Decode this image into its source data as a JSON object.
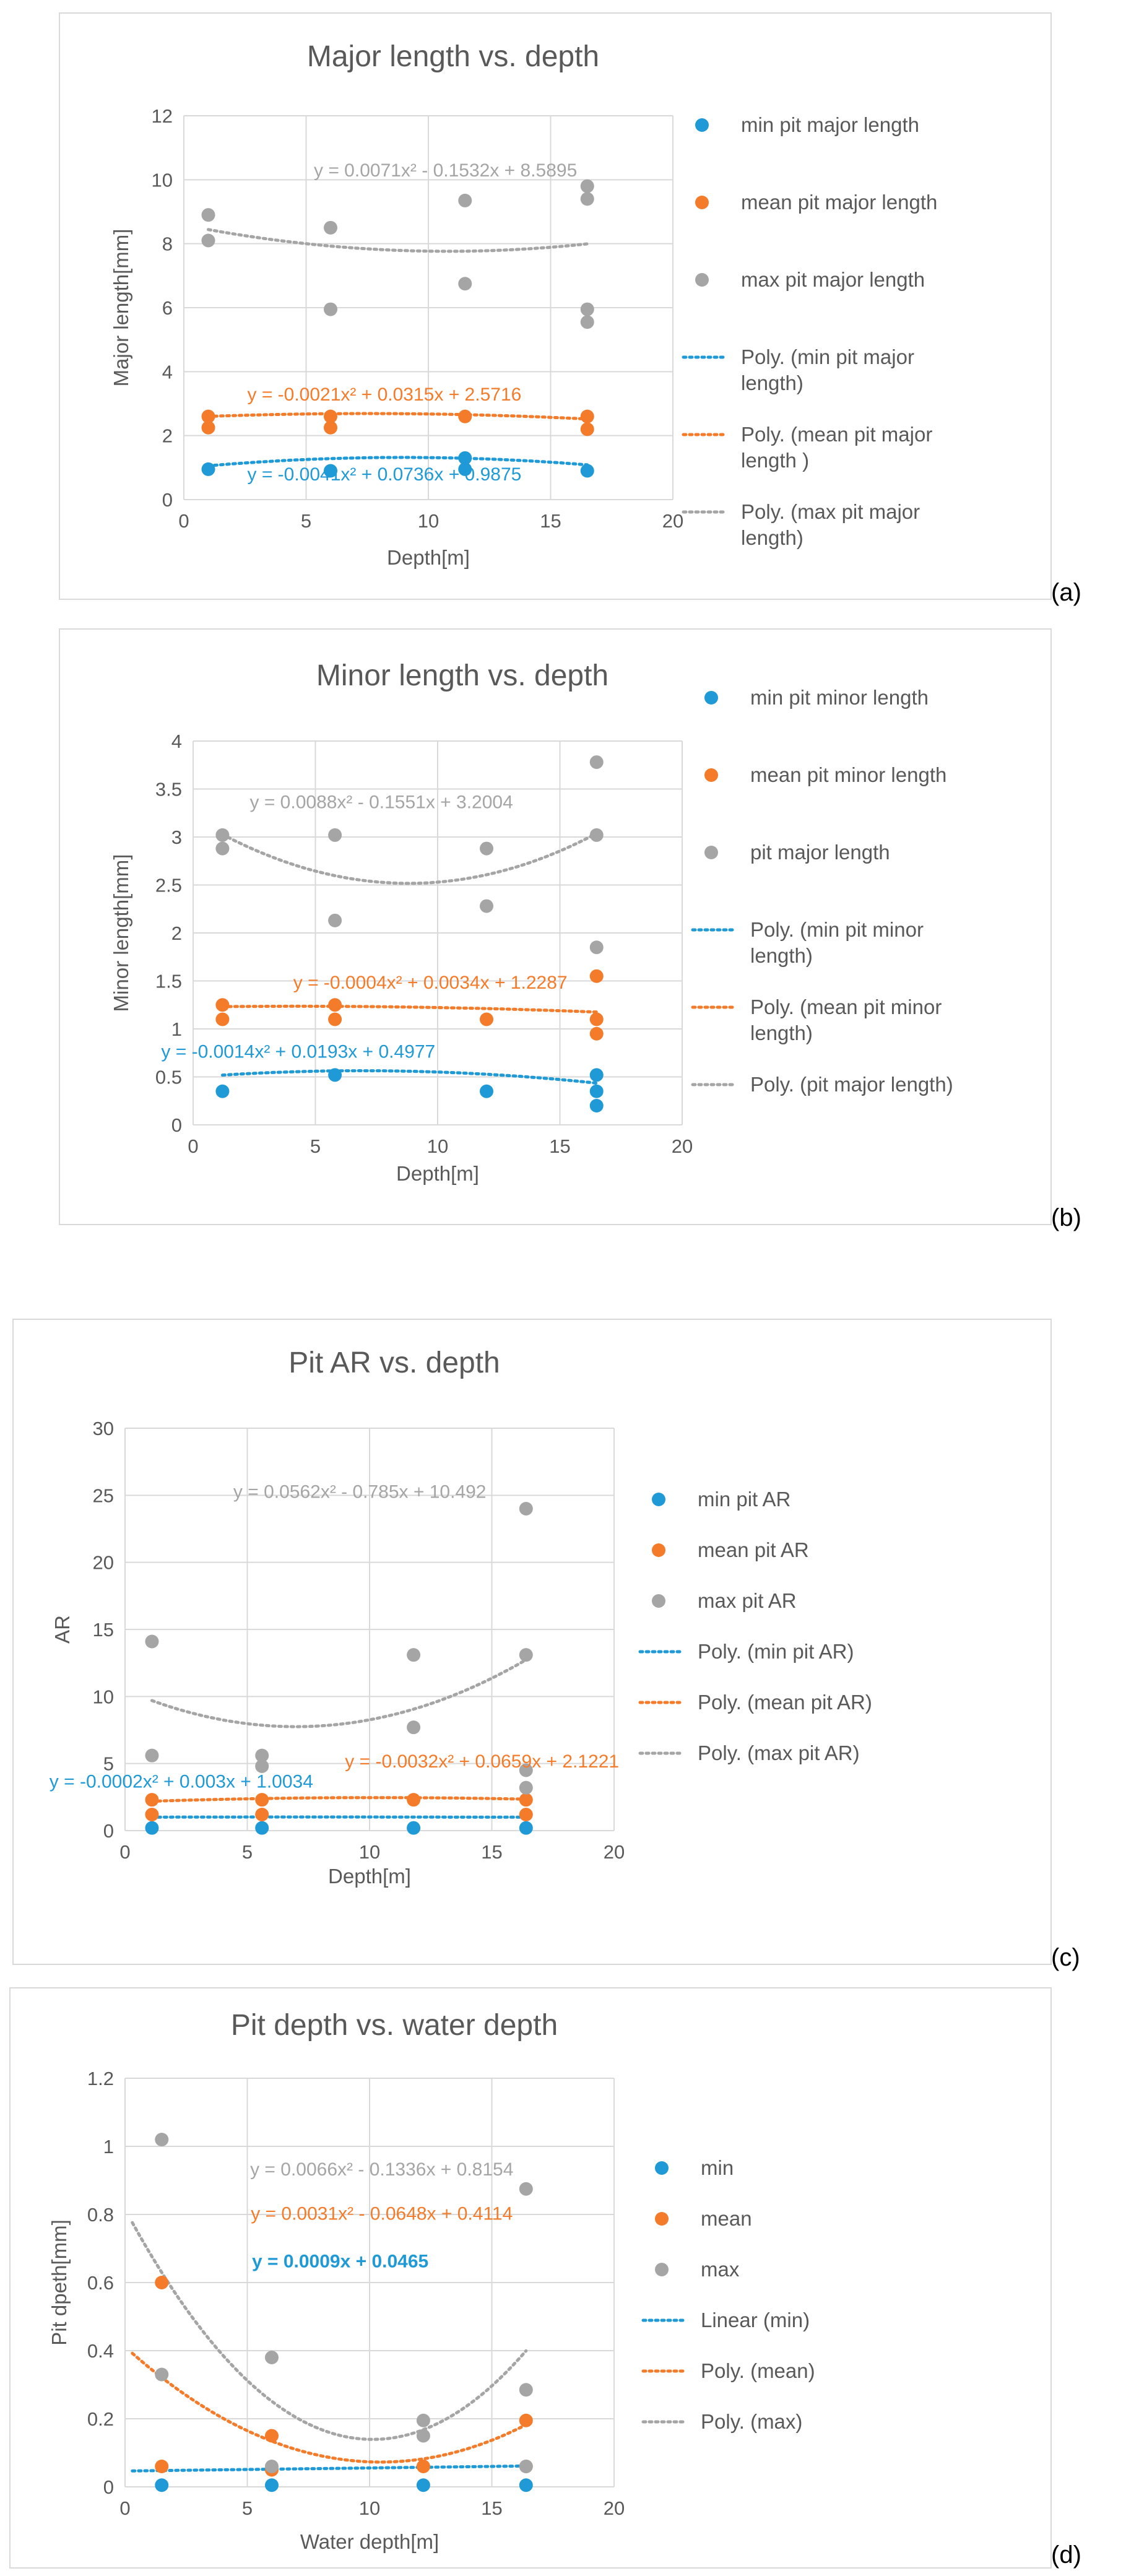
{
  "chart_data": [
    {
      "type": "scatter",
      "title": "Major length vs. depth",
      "xlabel": "Depth[m]",
      "ylabel": "Major length[mm]",
      "xlim": [
        0,
        20
      ],
      "ylim": [
        0,
        12
      ],
      "xticks": [
        0,
        5,
        10,
        15,
        20
      ],
      "yticks": [
        0,
        2,
        4,
        6,
        8,
        10,
        12
      ],
      "xtick_labels": [
        "0",
        "5",
        "10",
        "15",
        "20"
      ],
      "ytick_labels": [
        "0",
        "2",
        "4",
        "6",
        "8",
        "10",
        "12"
      ],
      "panel_label": "(a)",
      "legend_position": "right",
      "series": [
        {
          "name": "min pit major length",
          "color": "#1f9ad6",
          "points": [
            [
              1,
              0.95
            ],
            [
              6,
              0.9
            ],
            [
              11.5,
              0.95
            ],
            [
              11.5,
              1.3
            ],
            [
              16.5,
              0.9
            ]
          ]
        },
        {
          "name": "mean pit major length",
          "color": "#f47b2a",
          "points": [
            [
              1,
              2.25
            ],
            [
              1,
              2.6
            ],
            [
              6,
              2.25
            ],
            [
              6,
              2.6
            ],
            [
              11.5,
              2.6
            ],
            [
              16.5,
              2.2
            ],
            [
              16.5,
              2.6
            ]
          ]
        },
        {
          "name": "max pit major length",
          "color": "#a5a5a5",
          "points": [
            [
              1,
              8.9
            ],
            [
              1,
              8.1
            ],
            [
              6,
              8.5
            ],
            [
              6,
              5.95
            ],
            [
              11.5,
              9.35
            ],
            [
              11.5,
              6.75
            ],
            [
              16.5,
              9.8
            ],
            [
              16.5,
              9.4
            ],
            [
              16.5,
              5.95
            ],
            [
              16.5,
              5.55
            ]
          ]
        }
      ],
      "trendlines": [
        {
          "name": "Poly. (min pit major length)",
          "color": "#1f9ad6",
          "kind": "poly",
          "coef": [
            -0.0041,
            0.0736,
            0.9875
          ],
          "xrange": [
            1,
            16.5
          ],
          "equation": "y = -0.0041x² + 0.0736x + 0.9875",
          "label_at": [
            8.2,
            0.6
          ]
        },
        {
          "name": "Poly. (mean pit major length )",
          "color": "#f47b2a",
          "kind": "poly",
          "coef": [
            -0.0021,
            0.0315,
            2.5716
          ],
          "xrange": [
            1,
            16.5
          ],
          "equation": "y = -0.0021x² + 0.0315x + 2.5716",
          "label_at": [
            8.2,
            3.1
          ]
        },
        {
          "name": "Poly. (max pit major length)",
          "color": "#a5a5a5",
          "kind": "poly",
          "coef": [
            0.0071,
            -0.1532,
            8.5895
          ],
          "xrange": [
            1,
            16.5
          ],
          "equation": "y = 0.0071x² - 0.1532x + 8.5895",
          "label_at": [
            10.7,
            10.1
          ]
        }
      ]
    },
    {
      "type": "scatter",
      "title": "Minor length vs. depth",
      "xlabel": "Depth[m]",
      "ylabel": "Minor length[mm]",
      "xlim": [
        0,
        20
      ],
      "ylim": [
        0,
        4
      ],
      "xticks": [
        0,
        5,
        10,
        15,
        20
      ],
      "yticks": [
        0,
        0.5,
        1,
        1.5,
        2,
        2.5,
        3,
        3.5,
        4
      ],
      "xtick_labels": [
        "0",
        "5",
        "10",
        "15",
        "20"
      ],
      "ytick_labels": [
        "0",
        "0.5",
        "1",
        "1.5",
        "2",
        "2.5",
        "3",
        "3.5",
        "4"
      ],
      "panel_label": "(b)",
      "legend_position": "right",
      "series": [
        {
          "name": "min pit minor length",
          "color": "#1f9ad6",
          "points": [
            [
              1.2,
              0.35
            ],
            [
              5.8,
              0.52
            ],
            [
              12,
              0.35
            ],
            [
              16.5,
              0.52
            ],
            [
              16.5,
              0.35
            ],
            [
              16.5,
              0.2
            ]
          ]
        },
        {
          "name": "mean pit minor length",
          "color": "#f47b2a",
          "points": [
            [
              1.2,
              1.25
            ],
            [
              1.2,
              1.1
            ],
            [
              5.8,
              1.25
            ],
            [
              5.8,
              1.1
            ],
            [
              12,
              1.1
            ],
            [
              16.5,
              1.55
            ],
            [
              16.5,
              1.1
            ],
            [
              16.5,
              0.95
            ]
          ]
        },
        {
          "name": "pit major length",
          "color": "#a5a5a5",
          "points": [
            [
              1.2,
              3.02
            ],
            [
              1.2,
              2.88
            ],
            [
              5.8,
              3.02
            ],
            [
              5.8,
              2.13
            ],
            [
              12,
              2.88
            ],
            [
              12,
              2.28
            ],
            [
              16.5,
              3.78
            ],
            [
              16.5,
              3.02
            ],
            [
              16.5,
              1.85
            ]
          ]
        }
      ],
      "trendlines": [
        {
          "name": "Poly. (min pit minor length)",
          "color": "#1f9ad6",
          "kind": "poly",
          "coef": [
            -0.0014,
            0.0193,
            0.4977
          ],
          "xrange": [
            1.2,
            16.5
          ],
          "equation": "y = -0.0014x² + 0.0193x + 0.4977",
          "label_at": [
            4.3,
            0.7
          ]
        },
        {
          "name": "Poly. (mean pit minor length)",
          "color": "#f47b2a",
          "kind": "poly",
          "coef": [
            -0.0004,
            0.0034,
            1.2287
          ],
          "xrange": [
            1.2,
            16.5
          ],
          "equation": "y = -0.0004x² + 0.0034x + 1.2287",
          "label_at": [
            9.7,
            1.42
          ]
        },
        {
          "name": "Poly. (pit major length)",
          "color": "#a5a5a5",
          "kind": "poly",
          "coef": [
            0.0088,
            -0.1551,
            3.2004
          ],
          "xrange": [
            1.2,
            16.5
          ],
          "equation": "y = 0.0088x² - 0.1551x + 3.2004",
          "label_at": [
            7.7,
            3.3
          ]
        }
      ]
    },
    {
      "type": "scatter",
      "title": "Pit AR vs. depth",
      "xlabel": "Depth[m]",
      "ylabel": "AR",
      "xlim": [
        0,
        20
      ],
      "ylim": [
        0,
        30
      ],
      "xticks": [
        0,
        5,
        10,
        15,
        20
      ],
      "yticks": [
        0,
        5,
        10,
        15,
        20,
        25,
        30
      ],
      "xtick_labels": [
        "0",
        "5",
        "10",
        "15",
        "20"
      ],
      "ytick_labels": [
        "0",
        "5",
        "10",
        "15",
        "20",
        "25",
        "30"
      ],
      "panel_label": "(c)",
      "legend_position": "right",
      "series": [
        {
          "name": "min pit AR",
          "color": "#1f9ad6",
          "points": [
            [
              1.1,
              0.2
            ],
            [
              5.6,
              0.2
            ],
            [
              11.8,
              0.2
            ],
            [
              16.4,
              0.2
            ]
          ]
        },
        {
          "name": "mean pit AR",
          "color": "#f47b2a",
          "points": [
            [
              1.1,
              2.3
            ],
            [
              1.1,
              1.2
            ],
            [
              5.6,
              2.3
            ],
            [
              5.6,
              1.2
            ],
            [
              11.8,
              2.3
            ],
            [
              16.4,
              2.3
            ],
            [
              16.4,
              1.2
            ]
          ]
        },
        {
          "name": "max pit AR",
          "color": "#a5a5a5",
          "points": [
            [
              1.1,
              14.1
            ],
            [
              1.1,
              5.6
            ],
            [
              5.6,
              5.6
            ],
            [
              5.6,
              4.8
            ],
            [
              11.8,
              13.1
            ],
            [
              11.8,
              7.7
            ],
            [
              16.4,
              24
            ],
            [
              16.4,
              13.1
            ],
            [
              16.4,
              4.5
            ],
            [
              16.4,
              3.2
            ]
          ]
        }
      ],
      "trendlines": [
        {
          "name": "Poly. (min pit AR)",
          "color": "#1f9ad6",
          "kind": "poly",
          "coef": [
            -0.0002,
            0.003,
            1.0034
          ],
          "xrange": [
            1.1,
            16.4
          ],
          "equation": "y = -0.0002x² + 0.003x + 1.0034",
          "label_at": [
            2.3,
            3.2
          ]
        },
        {
          "name": "Poly. (mean pit AR)",
          "color": "#f47b2a",
          "kind": "poly",
          "coef": [
            -0.0032,
            0.0659,
            2.1221
          ],
          "xrange": [
            1.1,
            16.4
          ],
          "equation": "y = -0.0032x² + 0.0659x + 2.1221",
          "label_at": [
            14.6,
            4.7
          ]
        },
        {
          "name": "Poly. (max pit AR)",
          "color": "#a5a5a5",
          "kind": "poly",
          "coef": [
            0.0562,
            -0.785,
            10.492
          ],
          "xrange": [
            1.1,
            16.4
          ],
          "equation": "y = 0.0562x² - 0.785x + 10.492",
          "label_at": [
            9.6,
            24.8
          ]
        }
      ]
    },
    {
      "type": "scatter",
      "title": "Pit depth vs. water depth",
      "xlabel": "Water depth[m]",
      "ylabel": "Pit dpeth[mm]",
      "xlim": [
        0,
        20
      ],
      "ylim": [
        0,
        1.2
      ],
      "xticks": [
        0,
        5,
        10,
        15,
        20
      ],
      "yticks": [
        0,
        0.2,
        0.4,
        0.6,
        0.8,
        1,
        1.2
      ],
      "xtick_labels": [
        "0",
        "5",
        "10",
        "15",
        "20"
      ],
      "ytick_labels": [
        "0",
        "0.2",
        "0.4",
        "0.6",
        "0.8",
        "1",
        "1.2"
      ],
      "panel_label": "(d)",
      "legend_position": "right",
      "series": [
        {
          "name": "min",
          "color": "#1f9ad6",
          "points": [
            [
              1.5,
              0.005
            ],
            [
              6,
              0.005
            ],
            [
              12.2,
              0.005
            ],
            [
              16.4,
              0.005
            ]
          ]
        },
        {
          "name": "mean",
          "color": "#f47b2a",
          "points": [
            [
              1.5,
              0.6
            ],
            [
              1.5,
              0.06
            ],
            [
              6,
              0.15
            ],
            [
              6,
              0.05
            ],
            [
              12.2,
              0.06
            ],
            [
              16.4,
              0.195
            ],
            [
              16.4,
              0.06
            ]
          ]
        },
        {
          "name": "max",
          "color": "#a5a5a5",
          "points": [
            [
              1.5,
              1.02
            ],
            [
              1.5,
              0.33
            ],
            [
              6,
              0.38
            ],
            [
              6,
              0.06
            ],
            [
              12.2,
              0.195
            ],
            [
              12.2,
              0.15
            ],
            [
              16.4,
              0.875
            ],
            [
              16.4,
              0.285
            ],
            [
              16.4,
              0.06
            ]
          ]
        }
      ],
      "trendlines": [
        {
          "name": "Linear (min)",
          "color": "#1f9ad6",
          "kind": "linear",
          "coef": [
            0.0009,
            0.0465
          ],
          "xrange": [
            0.3,
            16.4
          ],
          "equation": "y = 0.0009x + 0.0465",
          "label_at": [
            8.8,
            0.645
          ],
          "label_bold": true
        },
        {
          "name": "Poly. (mean)",
          "color": "#f47b2a",
          "kind": "poly",
          "coef": [
            0.0031,
            -0.0648,
            0.4114
          ],
          "xrange": [
            0.3,
            16.4
          ],
          "equation": "y = 0.0031x² - 0.0648x + 0.4114",
          "label_at": [
            10.5,
            0.785
          ]
        },
        {
          "name": "Poly. (max)",
          "color": "#a5a5a5",
          "kind": "poly",
          "coef": [
            0.0066,
            -0.1336,
            0.8154
          ],
          "xrange": [
            0.3,
            16.4
          ],
          "equation": "y = 0.0066x² - 0.1336x + 0.8154",
          "label_at": [
            10.5,
            0.915
          ]
        }
      ]
    }
  ]
}
